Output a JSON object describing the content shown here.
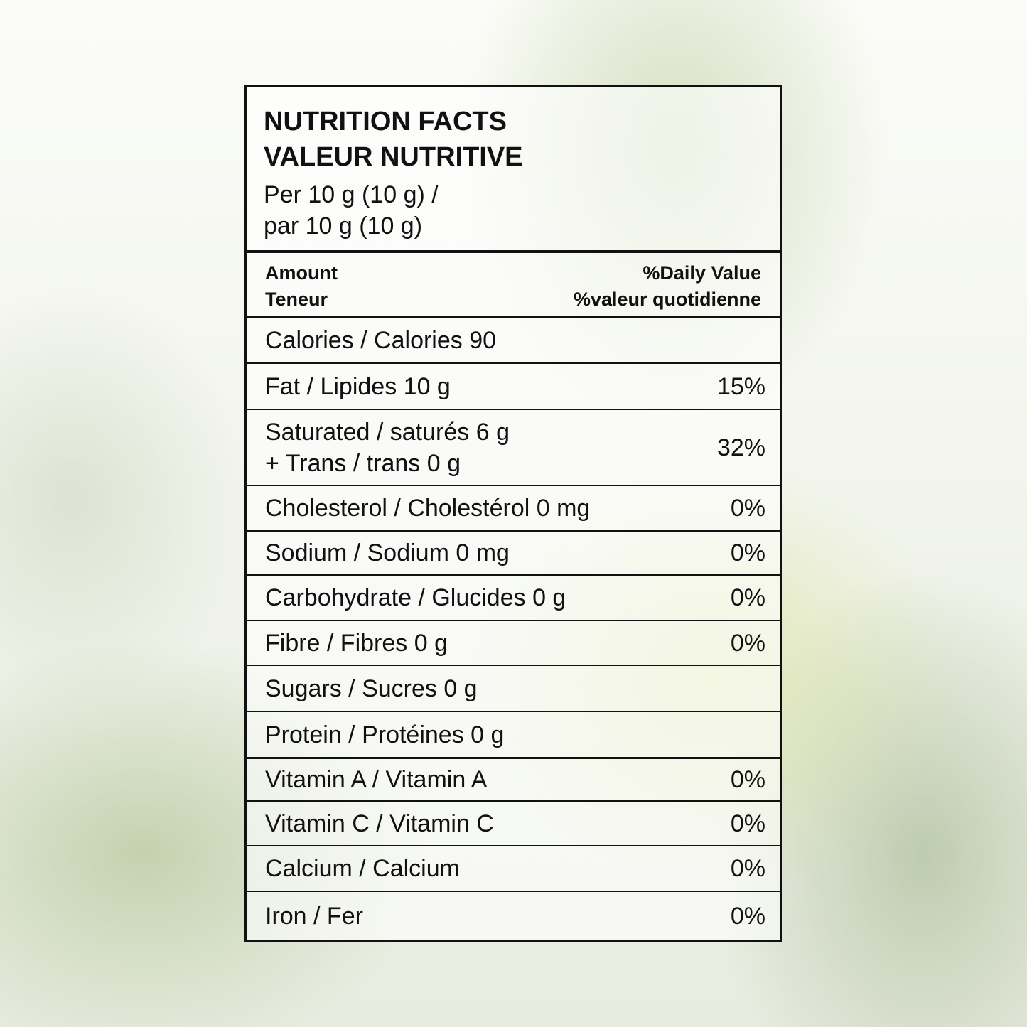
{
  "header": {
    "title": [
      "NUTRITION FACTS",
      "VALEUR NUTRITIVE"
    ],
    "serving": [
      "Per 10 g (10 g) /",
      "par 10 g (10 g)"
    ]
  },
  "columns": {
    "amount": [
      "Amount",
      "Teneur"
    ],
    "daily_value": [
      "%Daily Value",
      "%valeur quotidienne"
    ]
  },
  "nutrients": [
    {
      "label": [
        "Calories / Calories 90"
      ]
    },
    {
      "label": [
        "Fat / Lipides 10 g"
      ],
      "dv": "15%"
    },
    {
      "label": [
        "Saturated / saturés 6 g",
        "+ Trans / trans 0 g"
      ],
      "dv": "32%"
    },
    {
      "label": [
        "Cholesterol / Cholestérol 0 mg"
      ],
      "dv": "0%"
    },
    {
      "label": [
        "Sodium / Sodium 0 mg"
      ],
      "dv": "0%"
    },
    {
      "label": [
        "Carbohydrate / Glucides 0 g"
      ],
      "dv": "0%"
    },
    {
      "label": [
        "Fibre / Fibres 0 g"
      ],
      "dv": "0%"
    },
    {
      "label": [
        "Sugars / Sucres 0 g"
      ]
    },
    {
      "label": [
        "Protein / Protéines 0 g"
      ]
    }
  ],
  "vitamins": [
    {
      "label": [
        "Vitamin A / Vitamin A"
      ],
      "dv": "0%"
    },
    {
      "label": [
        "Vitamin C / Vitamin C"
      ],
      "dv": "0%"
    },
    {
      "label": [
        "Calcium / Calcium"
      ],
      "dv": "0%"
    },
    {
      "label": [
        "Iron / Fer"
      ],
      "dv": "0%"
    }
  ]
}
